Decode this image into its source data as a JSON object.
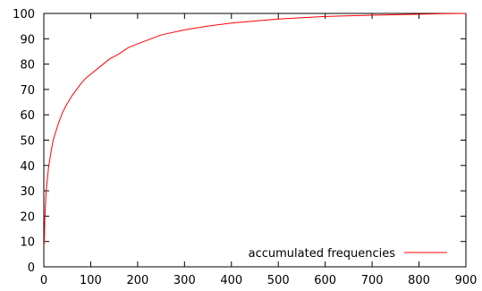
{
  "chart_data": {
    "type": "line",
    "title": "",
    "xlabel": "",
    "ylabel": "",
    "xlim": [
      0,
      900
    ],
    "ylim": [
      0,
      100
    ],
    "x_ticks": [
      0,
      100,
      200,
      300,
      400,
      500,
      600,
      700,
      800,
      900
    ],
    "y_ticks": [
      0,
      10,
      20,
      30,
      40,
      50,
      60,
      70,
      80,
      90,
      100
    ],
    "grid": false,
    "legend_position": "bottom-right",
    "series": [
      {
        "name": "accumulated frequencies",
        "color": "#ff0000",
        "x": [
          1,
          2,
          5,
          10,
          15,
          20,
          30,
          40,
          50,
          60,
          70,
          80,
          90,
          100,
          120,
          140,
          160,
          180,
          200,
          250,
          300,
          350,
          400,
          450,
          500,
          600,
          700,
          800,
          850,
          900
        ],
        "y": [
          9,
          18,
          30,
          39,
          45,
          50,
          56,
          61,
          64.5,
          67.5,
          70,
          72.5,
          74.5,
          76,
          79,
          82,
          84,
          86.5,
          88,
          91.5,
          93.5,
          95,
          96.2,
          97,
          97.8,
          98.8,
          99.3,
          99.7,
          99.9,
          100
        ]
      }
    ]
  }
}
